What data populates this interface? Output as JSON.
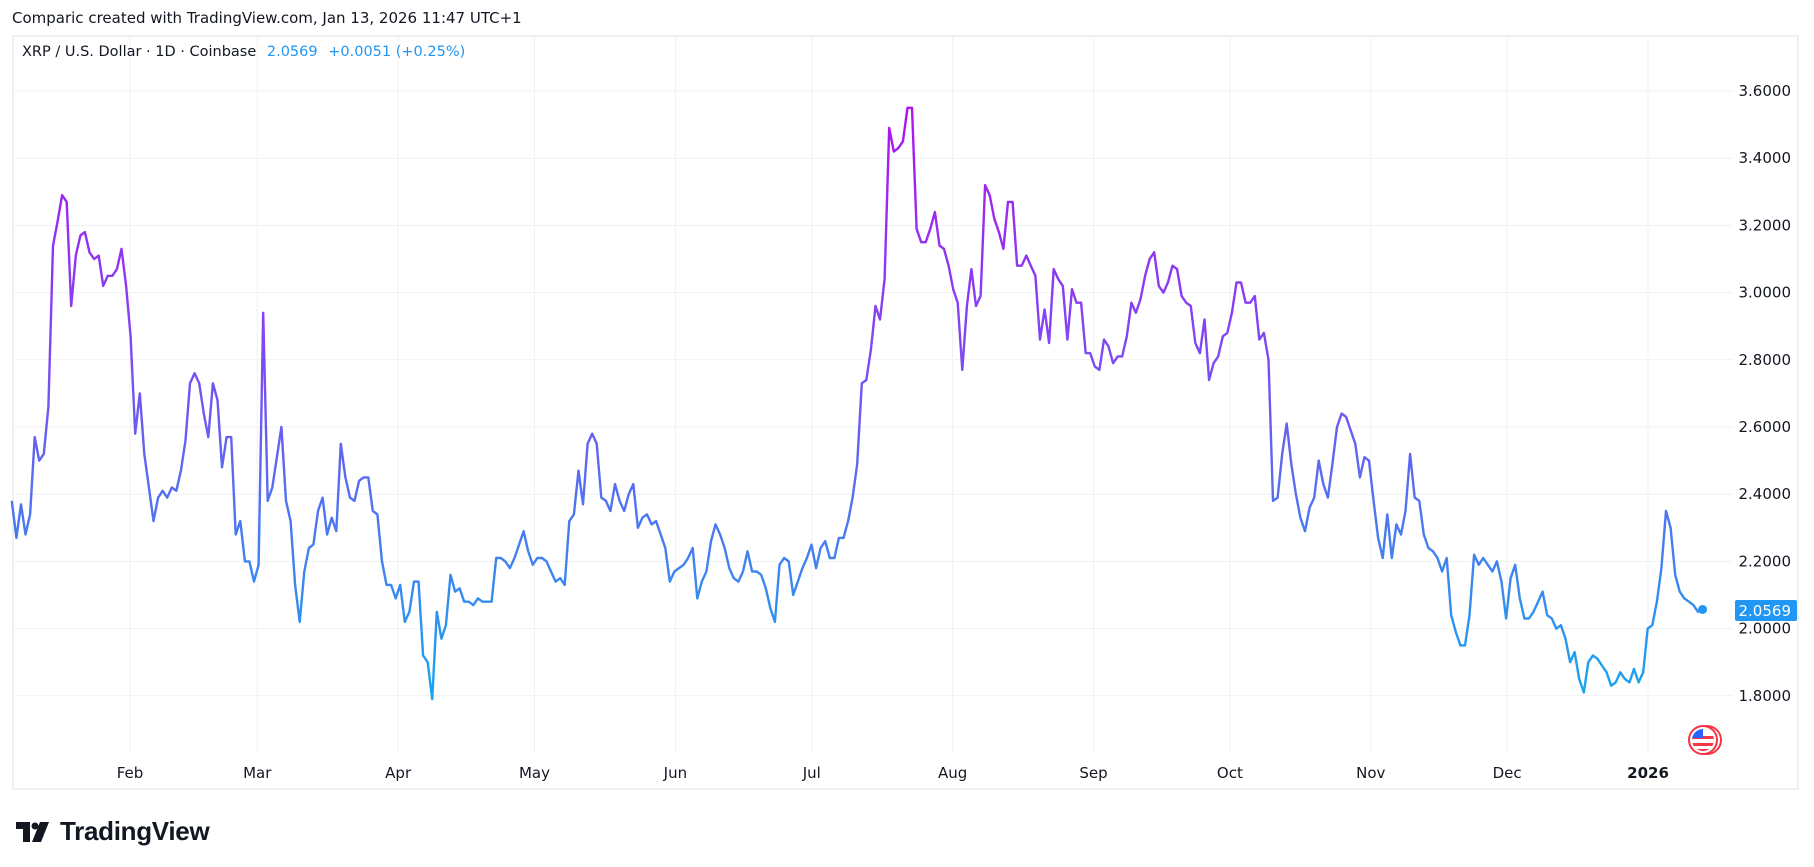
{
  "caption": "Comparic created with TradingView.com, Jan 13, 2026 11:47 UTC+1",
  "legend": {
    "symbol": "XRP / U.S. Dollar · 1D · Coinbase",
    "last": "2.0569",
    "change": "+0.0051 (+0.25%)"
  },
  "footer": {
    "brand": "TradingView",
    "logo_icon": "tradingview-logo-icon"
  },
  "colors": {
    "line_top": "#b10ff0",
    "line_mid": "#7c4cf2",
    "line_bottom": "#17a6ef",
    "badge": "#2196f3",
    "grid": "#f0f1f3"
  },
  "chart_data": {
    "type": "line",
    "title": "XRP / U.S. Dollar · 1D · Coinbase",
    "xlabel": "",
    "ylabel": "",
    "ylim": [
      1.8,
      3.6
    ],
    "grid": true,
    "first_date": "2025-01-06",
    "last_date": "2026-01-13",
    "y_ticks": [
      "1.8000",
      "2.0000",
      "2.2000",
      "2.4000",
      "2.6000",
      "2.8000",
      "3.0000",
      "3.2000",
      "3.4000",
      "3.6000"
    ],
    "x_ticks": [
      {
        "label": "Feb",
        "date": "2025-02-01"
      },
      {
        "label": "Mar",
        "date": "2025-03-01"
      },
      {
        "label": "Apr",
        "date": "2025-04-01"
      },
      {
        "label": "May",
        "date": "2025-05-01"
      },
      {
        "label": "Jun",
        "date": "2025-06-01"
      },
      {
        "label": "Jul",
        "date": "2025-07-01"
      },
      {
        "label": "Aug",
        "date": "2025-08-01"
      },
      {
        "label": "Sep",
        "date": "2025-09-01"
      },
      {
        "label": "Oct",
        "date": "2025-10-01"
      },
      {
        "label": "Nov",
        "date": "2025-11-01"
      },
      {
        "label": "Dec",
        "date": "2025-12-01"
      },
      {
        "label": "2026",
        "date": "2026-01-01"
      }
    ],
    "last_value_label": "2.0569",
    "series": [
      {
        "name": "XRPUSD",
        "values": [
          2.38,
          2.27,
          2.37,
          2.28,
          2.34,
          2.57,
          2.5,
          2.52,
          2.66,
          3.14,
          3.21,
          3.29,
          3.27,
          2.96,
          3.11,
          3.17,
          3.18,
          3.12,
          3.1,
          3.11,
          3.02,
          3.05,
          3.05,
          3.07,
          3.13,
          3.02,
          2.87,
          2.58,
          2.7,
          2.52,
          2.42,
          2.32,
          2.39,
          2.41,
          2.39,
          2.42,
          2.41,
          2.47,
          2.56,
          2.73,
          2.76,
          2.73,
          2.64,
          2.57,
          2.73,
          2.68,
          2.48,
          2.57,
          2.57,
          2.28,
          2.32,
          2.2,
          2.2,
          2.14,
          2.19,
          2.94,
          2.38,
          2.42,
          2.51,
          2.6,
          2.38,
          2.32,
          2.13,
          2.02,
          2.17,
          2.24,
          2.25,
          2.35,
          2.39,
          2.28,
          2.33,
          2.29,
          2.55,
          2.45,
          2.39,
          2.38,
          2.44,
          2.45,
          2.45,
          2.35,
          2.34,
          2.2,
          2.13,
          2.13,
          2.09,
          2.13,
          2.02,
          2.05,
          2.14,
          2.14,
          1.92,
          1.9,
          1.79,
          2.05,
          1.97,
          2.01,
          2.16,
          2.11,
          2.12,
          2.08,
          2.08,
          2.07,
          2.09,
          2.08,
          2.08,
          2.08,
          2.21,
          2.21,
          2.2,
          2.18,
          2.21,
          2.25,
          2.29,
          2.23,
          2.19,
          2.21,
          2.21,
          2.2,
          2.17,
          2.14,
          2.15,
          2.13,
          2.32,
          2.34,
          2.47,
          2.37,
          2.55,
          2.58,
          2.55,
          2.39,
          2.38,
          2.35,
          2.43,
          2.38,
          2.35,
          2.4,
          2.43,
          2.3,
          2.33,
          2.34,
          2.31,
          2.32,
          2.28,
          2.24,
          2.14,
          2.17,
          2.18,
          2.19,
          2.21,
          2.24,
          2.09,
          2.14,
          2.17,
          2.26,
          2.31,
          2.28,
          2.24,
          2.18,
          2.15,
          2.14,
          2.17,
          2.23,
          2.17,
          2.17,
          2.16,
          2.12,
          2.06,
          2.02,
          2.19,
          2.21,
          2.2,
          2.1,
          2.14,
          2.18,
          2.21,
          2.25,
          2.18,
          2.24,
          2.26,
          2.21,
          2.21,
          2.27,
          2.27,
          2.32,
          2.39,
          2.49,
          2.73,
          2.74,
          2.83,
          2.96,
          2.92,
          3.04,
          3.49,
          3.42,
          3.43,
          3.45,
          3.55,
          3.55,
          3.19,
          3.15,
          3.15,
          3.19,
          3.24,
          3.14,
          3.13,
          3.08,
          3.01,
          2.97,
          2.77,
          2.96,
          3.07,
          2.96,
          2.99,
          3.32,
          3.29,
          3.22,
          3.18,
          3.13,
          3.27,
          3.27,
          3.08,
          3.08,
          3.11,
          3.08,
          3.05,
          2.86,
          2.95,
          2.85,
          3.07,
          3.04,
          3.02,
          2.86,
          3.01,
          2.97,
          2.97,
          2.82,
          2.82,
          2.78,
          2.77,
          2.86,
          2.84,
          2.79,
          2.81,
          2.81,
          2.87,
          2.97,
          2.94,
          2.98,
          3.05,
          3.1,
          3.12,
          3.02,
          3.0,
          3.03,
          3.08,
          3.07,
          2.99,
          2.97,
          2.96,
          2.85,
          2.82,
          2.92,
          2.74,
          2.79,
          2.81,
          2.87,
          2.88,
          2.94,
          3.03,
          3.03,
          2.97,
          2.97,
          2.99,
          2.86,
          2.88,
          2.8,
          2.38,
          2.39,
          2.52,
          2.61,
          2.49,
          2.4,
          2.33,
          2.29,
          2.36,
          2.39,
          2.5,
          2.43,
          2.39,
          2.49,
          2.6,
          2.64,
          2.63,
          2.59,
          2.55,
          2.45,
          2.51,
          2.5,
          2.38,
          2.27,
          2.21,
          2.34,
          2.21,
          2.31,
          2.28,
          2.35,
          2.52,
          2.39,
          2.38,
          2.28,
          2.24,
          2.23,
          2.21,
          2.17,
          2.21,
          2.04,
          1.99,
          1.95,
          1.95,
          2.04,
          2.22,
          2.19,
          2.21,
          2.19,
          2.17,
          2.2,
          2.14,
          2.03,
          2.15,
          2.19,
          2.09,
          2.03,
          2.03,
          2.05,
          2.08,
          2.11,
          2.04,
          2.03,
          2.0,
          2.01,
          1.97,
          1.9,
          1.93,
          1.85,
          1.81,
          1.9,
          1.92,
          1.91,
          1.89,
          1.87,
          1.83,
          1.84,
          1.87,
          1.85,
          1.84,
          1.88,
          1.84,
          1.87,
          2.0,
          2.01,
          2.08,
          2.18,
          2.35,
          2.3,
          2.16,
          2.11,
          2.09,
          2.08,
          2.07,
          2.05,
          2.0569
        ]
      }
    ]
  }
}
